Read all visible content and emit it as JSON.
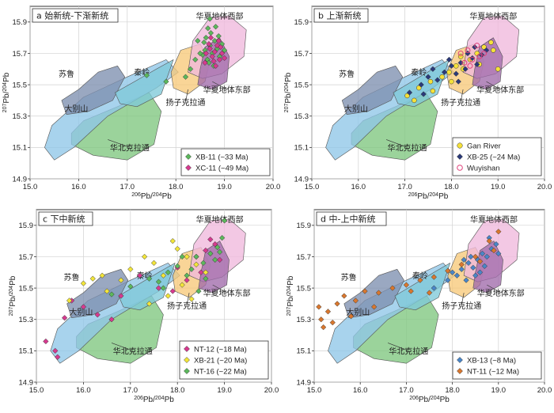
{
  "figure": {
    "x_label_html": "206Pb/204Pb",
    "y_label_html": "207Pb/204Pb"
  },
  "region_colors": {
    "north_china": "#7fc77f",
    "dabie": "#8fc6e8",
    "sulu": "#7d8fb0",
    "qinling": "#7fc9d8",
    "yangtze": "#f7c97a",
    "cathaysia_west": "#f0b8dc",
    "cathaysia_east": "#a06aaa"
  },
  "chart_data": [
    {
      "type": "scatter",
      "title": "a 始新统-下渐新统",
      "xlim": [
        15.0,
        20.0
      ],
      "ylim": [
        14.9,
        16.0
      ],
      "x_ticks": [
        "15.0",
        "16.0",
        "17.0",
        "18.0",
        "19.0",
        "20.0"
      ],
      "y_ticks": [
        "14.9",
        "15.1",
        "15.3",
        "15.5",
        "15.7",
        "15.9"
      ],
      "grid": true,
      "legend_position": "bottom-right",
      "region_labels": [
        {
          "key": "cathaysia_west",
          "text": "华夏地体西部"
        },
        {
          "key": "cathaysia_east",
          "text": "华夏地体东部"
        },
        {
          "key": "yangtze",
          "text": "扬子克拉通"
        },
        {
          "key": "qinling",
          "text": "秦岭"
        },
        {
          "key": "sulu",
          "text": "苏鲁"
        },
        {
          "key": "dabie",
          "text": "大别山"
        },
        {
          "key": "north_china",
          "text": "华北克拉通"
        }
      ],
      "series": [
        {
          "name": "XB-11 (~33 Ma)",
          "marker": "diamond",
          "color": "#5cb85c",
          "points": [
            [
              18.55,
              15.69
            ],
            [
              18.6,
              15.72
            ],
            [
              18.65,
              15.66
            ],
            [
              18.7,
              15.75
            ],
            [
              18.62,
              15.8
            ],
            [
              18.75,
              15.7
            ],
            [
              18.8,
              15.78
            ],
            [
              18.68,
              15.64
            ],
            [
              18.72,
              15.83
            ],
            [
              18.85,
              15.73
            ],
            [
              18.58,
              15.77
            ],
            [
              18.9,
              15.68
            ],
            [
              18.95,
              15.76
            ],
            [
              18.5,
              15.7
            ],
            [
              18.78,
              15.62
            ],
            [
              18.66,
              15.86
            ],
            [
              18.88,
              15.81
            ],
            [
              18.4,
              15.66
            ],
            [
              18.2,
              15.55
            ],
            [
              17.8,
              15.52
            ],
            [
              17.4,
              15.56
            ],
            [
              18.45,
              15.78
            ],
            [
              19.0,
              15.72
            ],
            [
              18.82,
              15.87
            ],
            [
              18.3,
              15.6
            ],
            [
              18.7,
              15.92
            ]
          ]
        },
        {
          "name": "XC-11 (~49 Ma)",
          "marker": "diamond",
          "color": "#d63a8f",
          "points": [
            [
              18.62,
              15.7
            ],
            [
              18.7,
              15.73
            ],
            [
              18.75,
              15.68
            ],
            [
              18.8,
              15.71
            ],
            [
              18.85,
              15.75
            ],
            [
              18.9,
              15.66
            ],
            [
              18.68,
              15.76
            ],
            [
              18.78,
              15.65
            ],
            [
              18.95,
              15.7
            ],
            [
              18.88,
              15.78
            ],
            [
              18.6,
              15.64
            ],
            [
              18.72,
              15.8
            ],
            [
              19.0,
              15.67
            ],
            [
              18.82,
              15.62
            ],
            [
              18.92,
              15.74
            ]
          ]
        }
      ]
    },
    {
      "type": "scatter",
      "title": "b 上渐新统",
      "xlim": [
        15.0,
        20.0
      ],
      "ylim": [
        14.9,
        16.0
      ],
      "x_ticks": [
        "15.0",
        "16.0",
        "17.0",
        "18.0",
        "19.0",
        "20.0"
      ],
      "y_ticks": [
        "14.9",
        "15.1",
        "15.3",
        "15.5",
        "15.7",
        "15.9"
      ],
      "grid": true,
      "legend_position": "bottom-right",
      "region_labels": [
        {
          "key": "cathaysia_west",
          "text": "华夏地体西部"
        },
        {
          "key": "cathaysia_east",
          "text": "华夏地体东部"
        },
        {
          "key": "yangtze",
          "text": "扬子克拉通"
        },
        {
          "key": "qinling",
          "text": "秦岭"
        },
        {
          "key": "sulu",
          "text": "苏鲁"
        },
        {
          "key": "dabie",
          "text": "大别山"
        },
        {
          "key": "north_china",
          "text": "华北克拉通"
        }
      ],
      "series": [
        {
          "name": "Gan River",
          "marker": "circle",
          "color": "#f5e13a",
          "points": [
            [
              17.05,
              15.43
            ],
            [
              17.3,
              15.48
            ],
            [
              17.55,
              15.52
            ],
            [
              17.8,
              15.55
            ],
            [
              17.95,
              15.58
            ],
            [
              18.1,
              15.62
            ],
            [
              18.25,
              15.6
            ],
            [
              18.4,
              15.66
            ],
            [
              18.55,
              15.7
            ],
            [
              18.7,
              15.74
            ],
            [
              18.85,
              15.77
            ],
            [
              17.6,
              15.46
            ],
            [
              18.0,
              15.52
            ],
            [
              18.2,
              15.68
            ],
            [
              18.6,
              15.63
            ],
            [
              19.0,
              15.6
            ],
            [
              17.2,
              15.4
            ],
            [
              18.9,
              15.72
            ]
          ]
        },
        {
          "name": "XB-25 (~24 Ma)",
          "marker": "diamond",
          "color": "#2b3a7a",
          "points": [
            [
              17.1,
              15.45
            ],
            [
              17.35,
              15.5
            ],
            [
              17.5,
              15.55
            ],
            [
              17.7,
              15.53
            ],
            [
              17.85,
              15.58
            ],
            [
              18.0,
              15.62
            ],
            [
              18.1,
              15.57
            ],
            [
              18.2,
              15.64
            ],
            [
              18.3,
              15.6
            ],
            [
              18.45,
              15.67
            ],
            [
              18.55,
              15.63
            ],
            [
              18.65,
              15.69
            ],
            [
              18.75,
              15.72
            ],
            [
              17.95,
              15.66
            ],
            [
              18.35,
              15.7
            ],
            [
              17.6,
              15.6
            ],
            [
              18.15,
              15.52
            ],
            [
              18.5,
              15.74
            ],
            [
              17.4,
              15.44
            ]
          ]
        },
        {
          "name": "Wuyishan",
          "marker": "circle-open",
          "color": "#e0407a",
          "points": [
            [
              18.2,
              15.7
            ],
            [
              18.35,
              15.72
            ],
            [
              18.45,
              15.66
            ],
            [
              18.55,
              15.75
            ],
            [
              18.6,
              15.68
            ],
            [
              18.7,
              15.7
            ],
            [
              18.4,
              15.62
            ],
            [
              18.28,
              15.64
            ]
          ]
        }
      ]
    },
    {
      "type": "scatter",
      "title": "c 下中新统",
      "xlim": [
        15.0,
        20.0
      ],
      "ylim": [
        14.9,
        16.0
      ],
      "x_ticks": [
        "15.0",
        "16.0",
        "17.0",
        "18.0",
        "19.0",
        "20.0"
      ],
      "y_ticks": [
        "14.9",
        "15.1",
        "15.3",
        "15.5",
        "15.7",
        "15.9"
      ],
      "grid": true,
      "legend_position": "bottom-right",
      "region_labels": [
        {
          "key": "cathaysia_west",
          "text": "华夏地体西部"
        },
        {
          "key": "cathaysia_east",
          "text": "华夏地体东部"
        },
        {
          "key": "yangtze",
          "text": "扬子克拉通"
        },
        {
          "key": "qinling",
          "text": "秦岭"
        },
        {
          "key": "sulu",
          "text": "苏鲁"
        },
        {
          "key": "dabie",
          "text": "大别山"
        },
        {
          "key": "north_china",
          "text": "华北克拉通"
        }
      ],
      "series": [
        {
          "name": "NT-12 (~18 Ma)",
          "marker": "diamond",
          "color": "#d63a8f",
          "points": [
            [
              15.2,
              15.16
            ],
            [
              15.4,
              15.1
            ],
            [
              15.45,
              15.06
            ],
            [
              15.6,
              15.31
            ],
            [
              15.75,
              15.42
            ],
            [
              16.0,
              15.38
            ],
            [
              16.3,
              15.33
            ],
            [
              16.6,
              15.3
            ],
            [
              16.8,
              15.45
            ],
            [
              17.2,
              15.58
            ],
            [
              17.6,
              15.5
            ],
            [
              18.0,
              15.63
            ],
            [
              18.4,
              15.7
            ],
            [
              18.6,
              15.74
            ],
            [
              18.8,
              15.78
            ],
            [
              18.5,
              15.6
            ],
            [
              18.9,
              15.68
            ],
            [
              18.2,
              15.55
            ],
            [
              17.9,
              15.48
            ],
            [
              18.7,
              15.81
            ]
          ]
        },
        {
          "name": "XB-21 (~20 Ma)",
          "marker": "diamond",
          "color": "#f2e53a",
          "points": [
            [
              15.7,
              15.42
            ],
            [
              16.0,
              15.53
            ],
            [
              16.2,
              15.56
            ],
            [
              16.4,
              15.58
            ],
            [
              16.8,
              15.55
            ],
            [
              17.0,
              15.62
            ],
            [
              17.3,
              15.7
            ],
            [
              17.5,
              15.66
            ],
            [
              17.7,
              15.58
            ],
            [
              18.0,
              15.75
            ],
            [
              18.2,
              15.7
            ],
            [
              18.4,
              15.65
            ],
            [
              18.6,
              15.6
            ],
            [
              18.1,
              15.52
            ],
            [
              17.8,
              15.45
            ],
            [
              18.3,
              15.43
            ],
            [
              17.4,
              15.4
            ],
            [
              18.7,
              15.72
            ],
            [
              16.5,
              15.48
            ],
            [
              17.9,
              15.8
            ]
          ]
        },
        {
          "name": "NT-16 (~22 Ma)",
          "marker": "diamond",
          "color": "#5cb85c",
          "points": [
            [
              16.6,
              15.46
            ],
            [
              17.0,
              15.51
            ],
            [
              17.4,
              15.56
            ],
            [
              17.6,
              15.54
            ],
            [
              17.8,
              15.6
            ],
            [
              18.0,
              15.64
            ],
            [
              18.2,
              15.58
            ],
            [
              18.4,
              15.7
            ],
            [
              18.55,
              15.66
            ],
            [
              18.7,
              15.72
            ],
            [
              18.85,
              15.76
            ],
            [
              18.95,
              15.82
            ],
            [
              19.0,
              15.93
            ],
            [
              18.3,
              15.62
            ],
            [
              17.7,
              15.5
            ],
            [
              18.6,
              15.56
            ],
            [
              18.1,
              15.7
            ],
            [
              18.8,
              15.68
            ],
            [
              18.45,
              15.48
            ],
            [
              18.9,
              15.73
            ]
          ]
        }
      ]
    },
    {
      "type": "scatter",
      "title": "d 中-上中新统",
      "xlim": [
        15.0,
        20.0
      ],
      "ylim": [
        14.9,
        16.0
      ],
      "x_ticks": [
        "15.0",
        "16.0",
        "17.0",
        "18.0",
        "19.0",
        "20.0"
      ],
      "y_ticks": [
        "14.9",
        "15.1",
        "15.3",
        "15.5",
        "15.7",
        "15.9"
      ],
      "grid": true,
      "legend_position": "bottom-right",
      "region_labels": [
        {
          "key": "cathaysia_west",
          "text": "华夏地体西部"
        },
        {
          "key": "cathaysia_east",
          "text": "华夏地体东部"
        },
        {
          "key": "yangtze",
          "text": "扬子克拉通"
        },
        {
          "key": "qinling",
          "text": "秦岭"
        },
        {
          "key": "sulu",
          "text": "苏鲁"
        },
        {
          "key": "dabie",
          "text": "大别山"
        },
        {
          "key": "north_china",
          "text": "华北克拉通"
        }
      ],
      "series": [
        {
          "name": "XB-13 (~8 Ma)",
          "marker": "diamond",
          "color": "#4a86c8",
          "points": [
            [
              17.6,
              15.5
            ],
            [
              17.9,
              15.55
            ],
            [
              18.1,
              15.58
            ],
            [
              18.2,
              15.62
            ],
            [
              18.35,
              15.66
            ],
            [
              18.45,
              15.63
            ],
            [
              18.55,
              15.68
            ],
            [
              18.65,
              15.72
            ],
            [
              18.75,
              15.7
            ],
            [
              18.85,
              15.75
            ],
            [
              18.5,
              15.58
            ],
            [
              18.3,
              15.55
            ],
            [
              18.0,
              15.6
            ],
            [
              18.7,
              15.64
            ],
            [
              18.95,
              15.78
            ],
            [
              18.4,
              15.7
            ],
            [
              18.6,
              15.6
            ],
            [
              18.8,
              15.82
            ],
            [
              18.25,
              15.68
            ],
            [
              19.0,
              15.72
            ]
          ]
        },
        {
          "name": "NT-11 (~12 Ma)",
          "marker": "diamond",
          "color": "#d9772e",
          "points": [
            [
              15.1,
              15.38
            ],
            [
              15.15,
              15.3
            ],
            [
              15.2,
              15.25
            ],
            [
              15.3,
              15.35
            ],
            [
              15.5,
              15.4
            ],
            [
              15.65,
              15.45
            ],
            [
              15.9,
              15.42
            ],
            [
              16.1,
              15.48
            ],
            [
              16.4,
              15.47
            ],
            [
              16.7,
              15.5
            ],
            [
              17.0,
              15.52
            ],
            [
              17.3,
              15.55
            ],
            [
              17.6,
              15.57
            ],
            [
              17.9,
              15.61
            ],
            [
              18.2,
              15.65
            ],
            [
              18.5,
              15.7
            ],
            [
              18.8,
              15.8
            ],
            [
              19.0,
              15.86
            ],
            [
              18.9,
              15.74
            ],
            [
              17.5,
              15.47
            ],
            [
              16.3,
              15.38
            ],
            [
              15.8,
              15.32
            ],
            [
              17.1,
              15.48
            ],
            [
              18.6,
              15.67
            ],
            [
              15.4,
              15.28
            ]
          ]
        }
      ]
    }
  ]
}
